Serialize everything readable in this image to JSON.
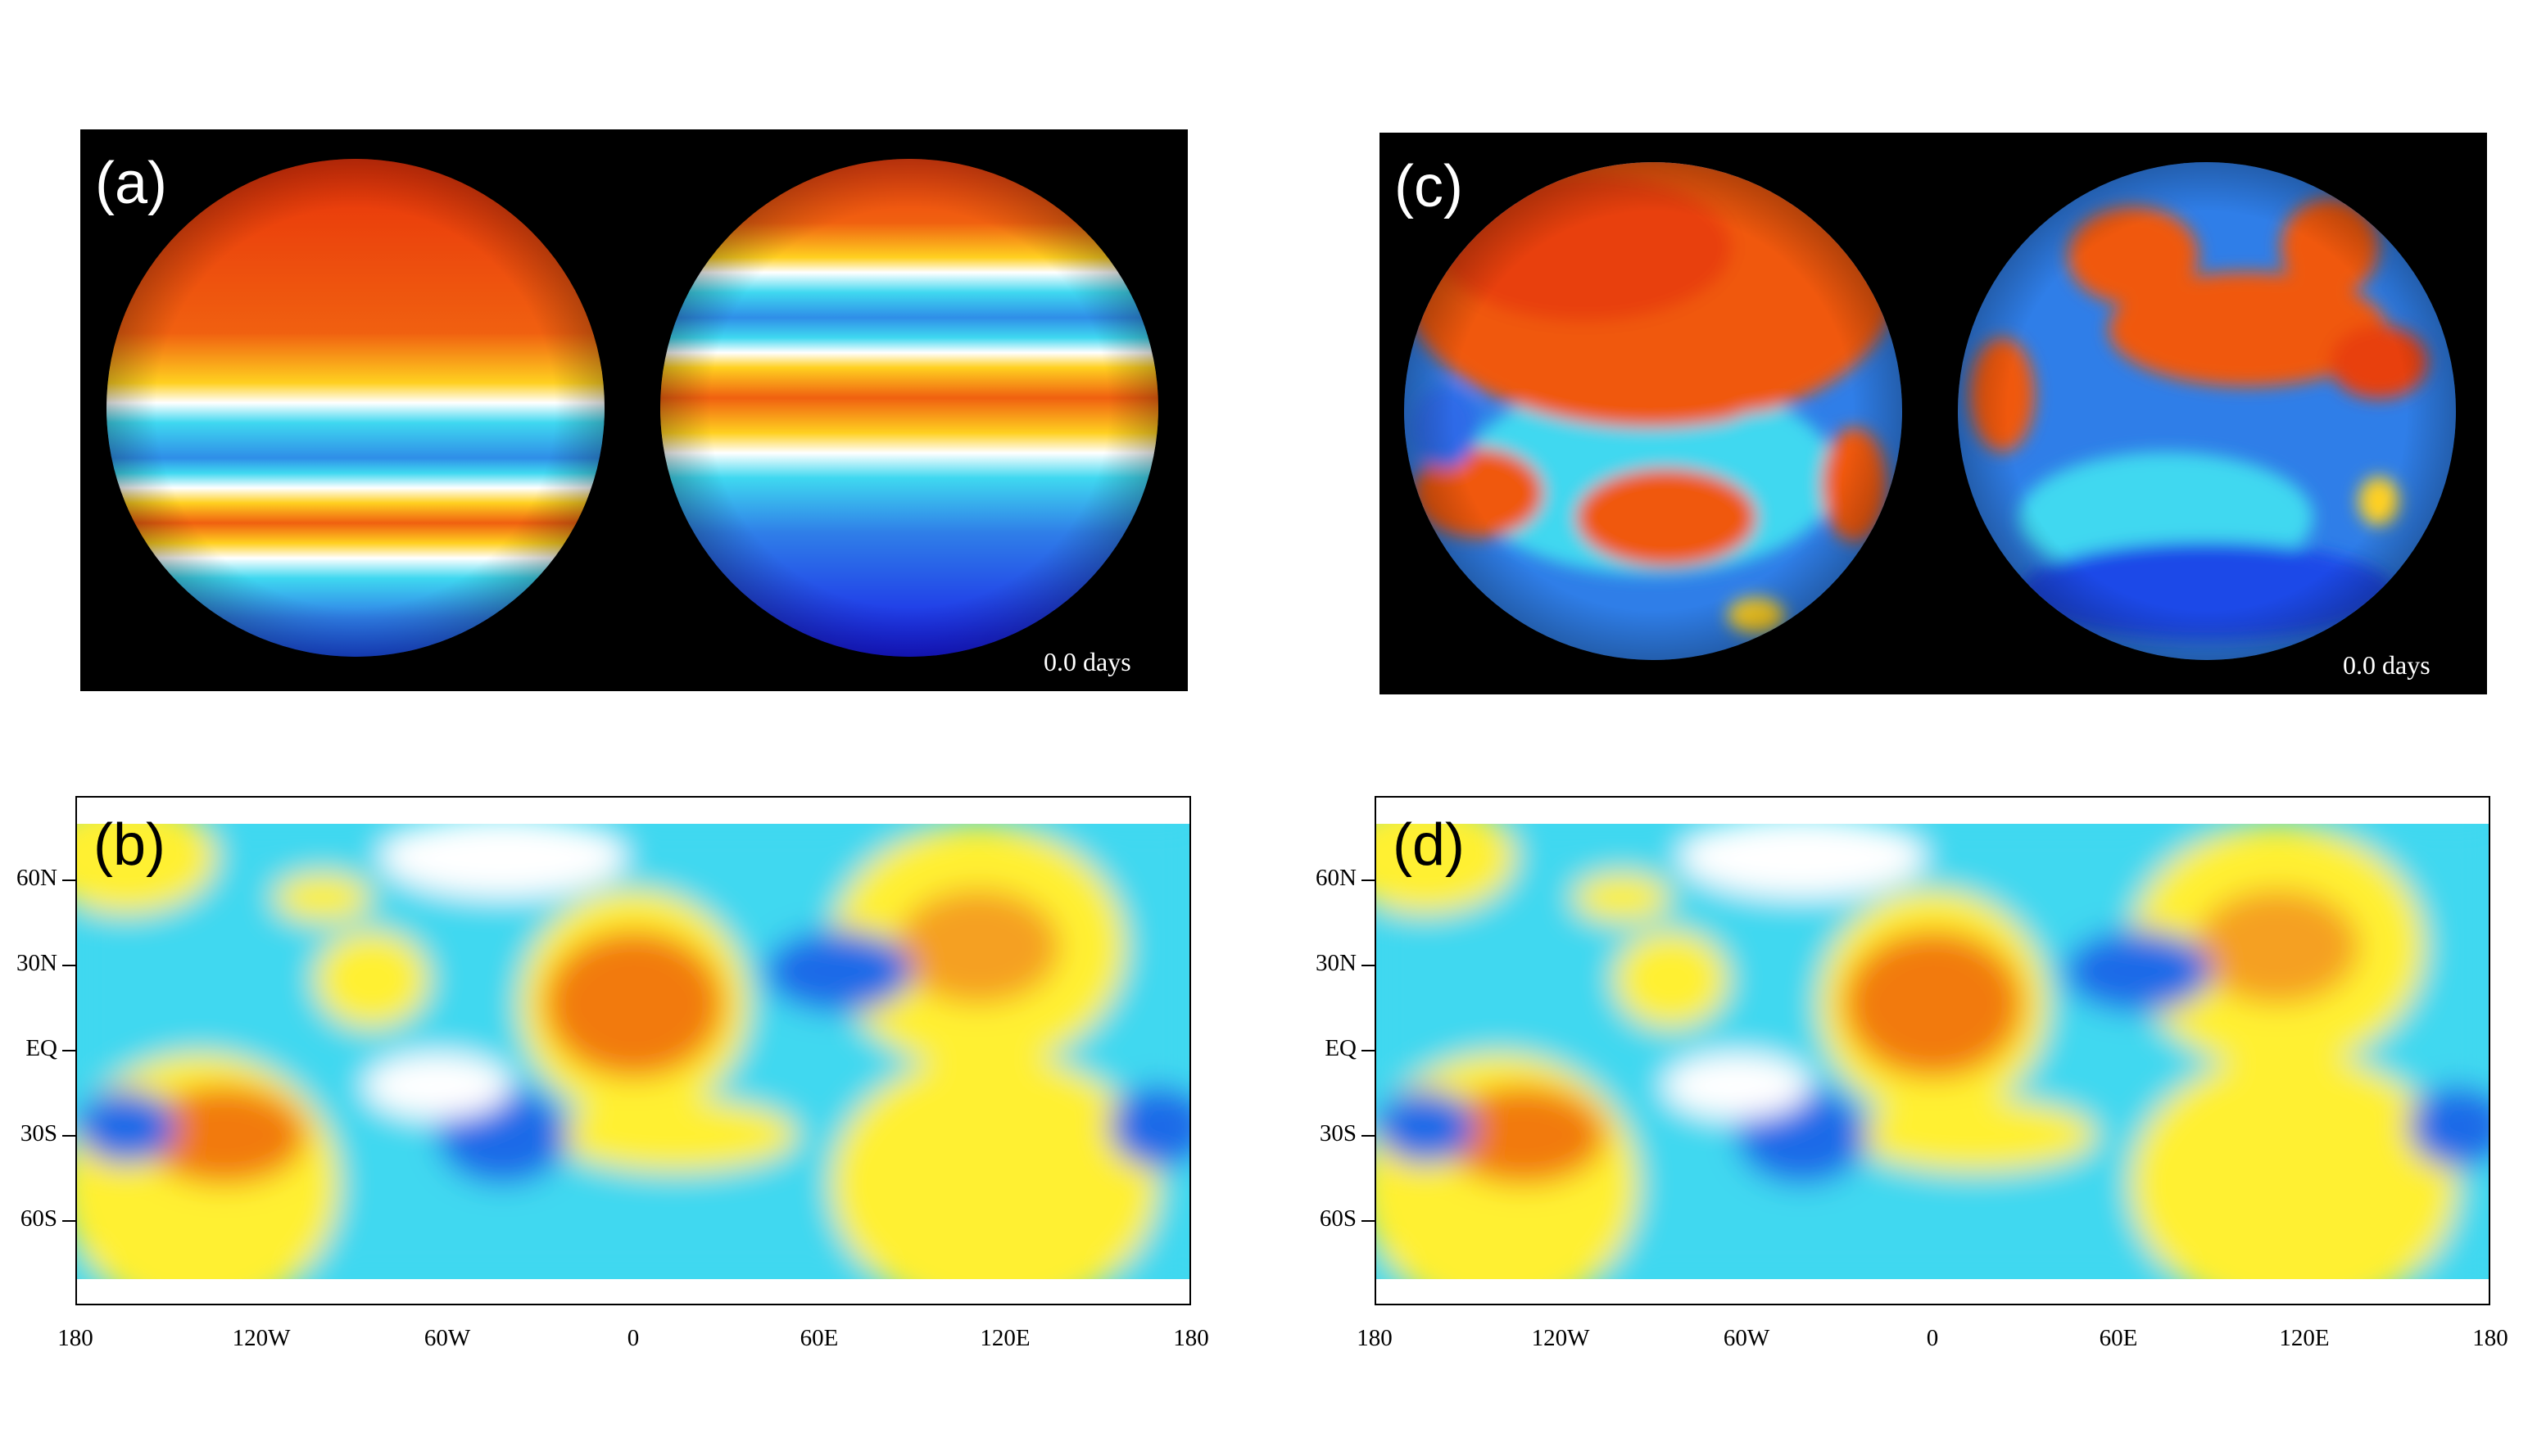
{
  "figure": {
    "panels": [
      {
        "id": "a",
        "label": "(a)",
        "kind": "globe-pair",
        "time_label": "0.0 days"
      },
      {
        "id": "b",
        "label": "(b)",
        "kind": "lat-lon-map"
      },
      {
        "id": "c",
        "label": "(c)",
        "kind": "globe-pair",
        "time_label": "0.0 days"
      },
      {
        "id": "d",
        "label": "(d)",
        "kind": "lat-lon-map"
      }
    ],
    "map_axes": {
      "lat_ticks": [
        "60N",
        "30N",
        "EQ",
        "30S",
        "60S"
      ],
      "lon_ticks": [
        "180",
        "120W",
        "60W",
        "0",
        "60E",
        "120E",
        "180"
      ]
    },
    "colormap": {
      "red": "#e8320a",
      "orange": "#f27a10",
      "yellow": "#fff033",
      "white": "#ffffff",
      "cyan": "#3fd8f0",
      "blue": "#1f6ae8",
      "deep_blue": "#1818e8"
    }
  }
}
